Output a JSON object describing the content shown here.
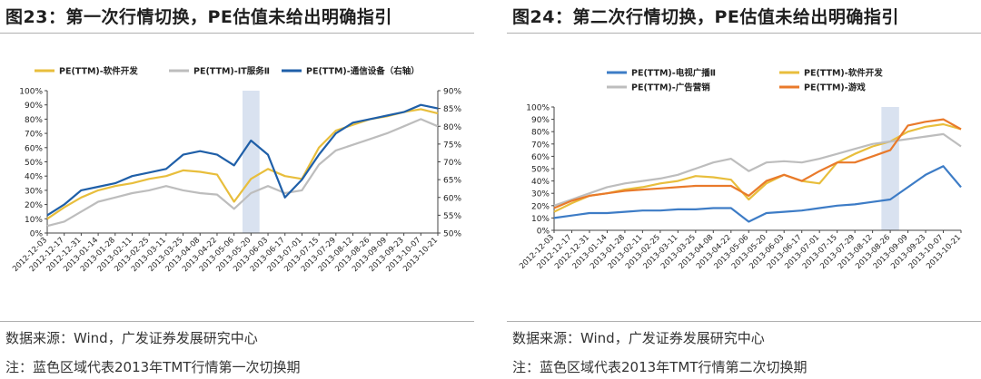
{
  "left": {
    "title": "图23：第一次行情切换，PE估值未给出明确指引",
    "source": "数据来源：Wind，广发证券发展研究中心",
    "note": "注：蓝色区域代表2013年TMT行情第一次切换期"
  },
  "right": {
    "title": "图24：第二次行情切换，PE估值未给出明确指引",
    "source": "数据来源：Wind，广发证券发展研究中心",
    "note": "注：蓝色区域代表2013年TMT行情第二次切换期"
  },
  "colors": {
    "software": "#E8BE3C",
    "it_services": "#BDBDBD",
    "telecom": "#1F5FA8",
    "tv_broadcast": "#3D7CC6",
    "advertising": "#BDBDBD",
    "gaming": "#E97A2B",
    "highlight": "#D9E2F0"
  },
  "chart_data": [
    {
      "type": "line",
      "title": "",
      "x": [
        "2012-12-03",
        "2012-12-17",
        "2012-12-31",
        "2013-01-14",
        "2013-01-28",
        "2013-02-11",
        "2013-02-25",
        "2013-03-11",
        "2013-03-25",
        "2013-04-08",
        "2013-04-22",
        "2013-05-06",
        "2013-05-20",
        "2013-06-03",
        "2013-06-17",
        "2013-07-01",
        "2013-07-15",
        "2013-07-29",
        "2013-08-12",
        "2013-08-26",
        "2013-09-09",
        "2013-09-23",
        "2013-10-07",
        "2013-10-21"
      ],
      "ylim_left": [
        0,
        100
      ],
      "ylim_right": [
        50,
        90
      ],
      "yticks_left": [
        "0%",
        "10%",
        "20%",
        "30%",
        "40%",
        "50%",
        "60%",
        "70%",
        "80%",
        "90%",
        "100%"
      ],
      "yticks_right": [
        "50%",
        "55%",
        "60%",
        "65%",
        "70%",
        "75%",
        "80%",
        "85%",
        "90%"
      ],
      "highlight": {
        "from": "2013-05-13",
        "to": "2013-05-27"
      },
      "legend_position": "top",
      "series": [
        {
          "name": "PE(TTM)-软件开发",
          "axis": "left",
          "color_key": "software",
          "values": [
            10,
            18,
            25,
            30,
            33,
            35,
            38,
            40,
            44,
            43,
            41,
            22,
            38,
            45,
            40,
            38,
            60,
            72,
            76,
            80,
            82,
            85,
            87,
            84
          ]
        },
        {
          "name": "PE(TTM)-IT服务Ⅱ",
          "axis": "left",
          "color_key": "it_services",
          "values": [
            5,
            8,
            15,
            22,
            25,
            28,
            30,
            33,
            30,
            28,
            27,
            17,
            28,
            33,
            28,
            30,
            48,
            58,
            62,
            66,
            70,
            75,
            80,
            75
          ]
        },
        {
          "name": "PE(TTM)-通信设备（右轴）",
          "axis": "right",
          "color_key": "telecom",
          "values": [
            55,
            58,
            62,
            63,
            64,
            66,
            67,
            68,
            72,
            73,
            72,
            69,
            76,
            72,
            60,
            65,
            72,
            78,
            81,
            82,
            83,
            84,
            86,
            85
          ]
        }
      ]
    },
    {
      "type": "line",
      "title": "",
      "x": [
        "2012-12-03",
        "2012-12-17",
        "2012-12-31",
        "2013-01-14",
        "2013-01-28",
        "2013-02-11",
        "2013-02-25",
        "2013-03-11",
        "2013-03-25",
        "2013-04-08",
        "2013-04-22",
        "2013-05-06",
        "2013-05-20",
        "2013-06-03",
        "2013-06-17",
        "2013-07-01",
        "2013-07-15",
        "2013-07-29",
        "2013-08-12",
        "2013-08-26",
        "2013-09-09",
        "2013-09-23",
        "2013-10-07",
        "2013-10-21"
      ],
      "ylim": [
        0,
        100
      ],
      "yticks": [
        "0%",
        "10%",
        "20%",
        "30%",
        "40%",
        "50%",
        "60%",
        "70%",
        "80%",
        "90%",
        "100%"
      ],
      "highlight": {
        "from": "2013-08-19",
        "to": "2013-09-02"
      },
      "legend_position": "top",
      "series": [
        {
          "name": "PE(TTM)-电视广播Ⅱ",
          "color_key": "tv_broadcast",
          "values": [
            10,
            12,
            14,
            14,
            15,
            16,
            16,
            17,
            17,
            18,
            18,
            7,
            14,
            15,
            16,
            18,
            20,
            21,
            23,
            25,
            35,
            45,
            52,
            35
          ]
        },
        {
          "name": "PE(TTM)-软件开发",
          "color_key": "software",
          "values": [
            15,
            22,
            28,
            30,
            33,
            35,
            38,
            40,
            44,
            43,
            41,
            25,
            38,
            45,
            40,
            38,
            55,
            62,
            68,
            72,
            80,
            84,
            86,
            82
          ]
        },
        {
          "name": "PE(TTM)-广告营销",
          "color_key": "advertising",
          "values": [
            20,
            25,
            30,
            35,
            38,
            40,
            42,
            45,
            50,
            55,
            58,
            48,
            55,
            56,
            55,
            58,
            62,
            66,
            70,
            72,
            74,
            76,
            78,
            68
          ]
        },
        {
          "name": "PE(TTM)-游戏",
          "color_key": "gaming",
          "values": [
            18,
            24,
            28,
            30,
            32,
            33,
            34,
            35,
            36,
            36,
            36,
            28,
            40,
            45,
            40,
            48,
            55,
            55,
            60,
            65,
            85,
            88,
            90,
            82
          ]
        }
      ]
    }
  ]
}
